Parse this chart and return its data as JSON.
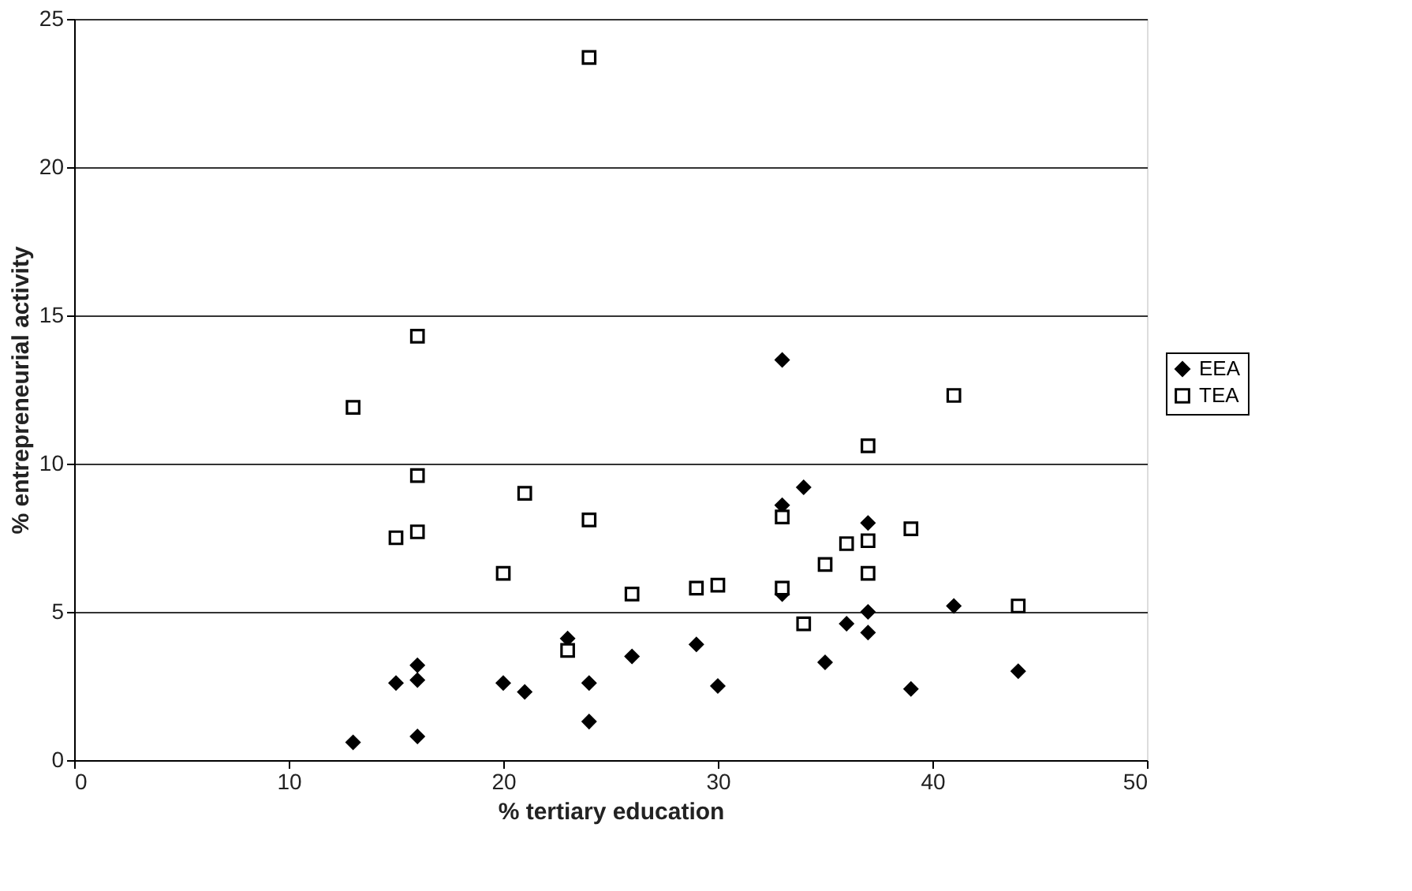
{
  "chart_data": {
    "type": "scatter",
    "xlabel": "% tertiary education",
    "ylabel": "% entrepreneurial activity",
    "xlim": [
      0,
      50
    ],
    "xticks": [
      0,
      10,
      20,
      30,
      40,
      50
    ],
    "ylim": [
      0,
      25
    ],
    "yticks": [
      0,
      5,
      10,
      15,
      20,
      25
    ],
    "grid": "y",
    "legend": "right",
    "series": [
      {
        "name": "EEA",
        "color": "#000000",
        "marker": "diamond",
        "x": [
          13,
          15,
          16,
          16,
          16,
          20,
          21,
          23,
          24,
          24,
          26,
          29,
          30,
          33,
          33,
          33,
          34,
          35,
          36,
          37,
          37,
          37,
          39,
          41,
          44
        ],
        "values": [
          0.6,
          2.6,
          3.2,
          2.7,
          0.8,
          2.6,
          2.3,
          4.1,
          2.6,
          1.3,
          3.5,
          3.9,
          2.5,
          13.5,
          8.6,
          5.6,
          9.2,
          3.3,
          4.6,
          8.0,
          5.0,
          4.3,
          2.4,
          5.2,
          3.0
        ]
      },
      {
        "name": "TEA",
        "color": "#000000",
        "marker": "square",
        "x": [
          13,
          15,
          16,
          16,
          16,
          20,
          21,
          23,
          24,
          24,
          26,
          29,
          30,
          33,
          33,
          34,
          35,
          36,
          37,
          37,
          37,
          39,
          41,
          44
        ],
        "values": [
          11.9,
          7.5,
          14.3,
          9.6,
          7.7,
          6.3,
          9.0,
          3.7,
          23.7,
          8.1,
          5.6,
          5.8,
          5.9,
          8.2,
          5.8,
          4.6,
          6.6,
          7.3,
          10.6,
          7.4,
          6.3,
          7.8,
          12.3,
          5.2
        ]
      }
    ]
  }
}
